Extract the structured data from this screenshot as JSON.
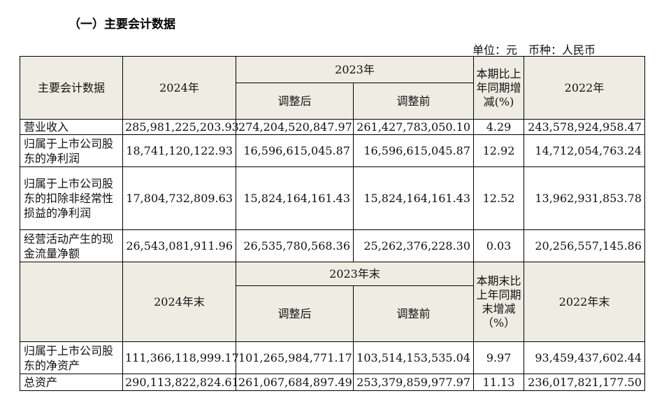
{
  "section_title": "（一）主要会计数据",
  "unit_line": "单位：元　币种：人民币",
  "table1": {
    "headers": {
      "col1": "主要会计数据",
      "col2": "2024年",
      "col3_group": "2023年",
      "col3a": "调整后",
      "col3b": "调整前",
      "col4": "本期比上年同期增减(%)",
      "col5": "2022年"
    },
    "rows": [
      {
        "label": "营业收入",
        "v2024": "285,981,225,203.93",
        "v2023_adj": "274,204,520,847.97",
        "v2023_orig": "261,427,783,050.10",
        "change": "4.29",
        "v2022": "243,578,924,958.47"
      },
      {
        "label": "归属于上市公司股东的净利润",
        "v2024": "18,741,120,122.93",
        "v2023_adj": "16,596,615,045.87",
        "v2023_orig": "16,596,615,045.87",
        "change": "12.92",
        "v2022": "14,712,054,763.24"
      },
      {
        "label": "归属于上市公司股东的扣除非经常性损益的净利润",
        "v2024": "17,804,732,809.63",
        "v2023_adj": "15,824,164,161.43",
        "v2023_orig": "15,824,164,161.43",
        "change": "12.52",
        "v2022": "13,962,931,853.78"
      },
      {
        "label": "经营活动产生的现金流量净额",
        "v2024": "26,543,081,911.96",
        "v2023_adj": "26,535,780,568.36",
        "v2023_orig": "25,262,376,228.30",
        "change": "0.03",
        "v2022": "20,256,557,145.86"
      }
    ]
  },
  "table2": {
    "headers": {
      "col1": "",
      "col2": "2024年末",
      "col3_group": "2023年末",
      "col3a": "调整后",
      "col3b": "调整前",
      "col4": "本期末比上年同期末增减（%）",
      "col5": "2022年末"
    },
    "rows": [
      {
        "label": "归属于上市公司股东的净资产",
        "v2024": "111,366,118,999.17",
        "v2023_adj": "101,265,984,771.17",
        "v2023_orig": "103,514,153,535.04",
        "change": "9.97",
        "v2022": "93,459,437,602.44"
      },
      {
        "label": "总资产",
        "v2024": "290,113,822,824.61",
        "v2023_adj": "261,067,684,897.49",
        "v2023_orig": "253,379,859,977.97",
        "change": "11.13",
        "v2022": "236,017,821,177.50"
      }
    ]
  }
}
